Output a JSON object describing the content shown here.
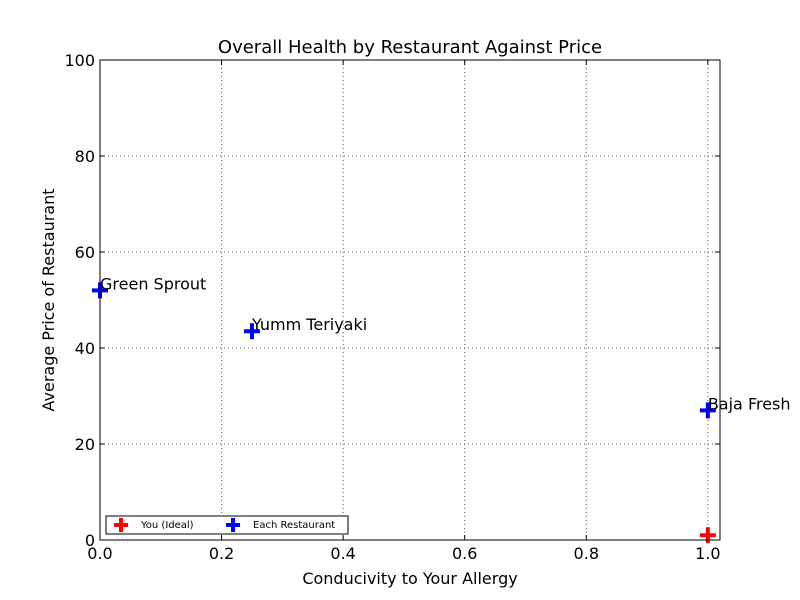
{
  "chart_data": {
    "type": "scatter",
    "title": "Overall Health by Restaurant Against Price",
    "xlabel": "Conducivity to Your Allergy",
    "ylabel": "Average Price of Restaurant",
    "xlim": [
      0.0,
      1.02
    ],
    "ylim": [
      0,
      100
    ],
    "xticks": [
      "0.0",
      "0.2",
      "0.4",
      "0.6",
      "0.8",
      "1.0"
    ],
    "xtick_values": [
      0.0,
      0.2,
      0.4,
      0.6,
      0.8,
      1.0
    ],
    "yticks": [
      "0",
      "20",
      "40",
      "60",
      "80",
      "100"
    ],
    "ytick_values": [
      0,
      20,
      40,
      60,
      80,
      100
    ],
    "grid": true,
    "legend_position": "lower-left",
    "series": [
      {
        "name": "You (Ideal)",
        "color": "#ff0000",
        "marker": "plus",
        "points": [
          {
            "x": 1.0,
            "y": 1,
            "label": ""
          }
        ]
      },
      {
        "name": "Each Restaurant",
        "color": "#0000ff",
        "marker": "plus",
        "points": [
          {
            "x": 0.0,
            "y": 52,
            "label": "Green Sprout"
          },
          {
            "x": 0.25,
            "y": 43.5,
            "label": "Yumm Teriyaki"
          },
          {
            "x": 1.0,
            "y": 27,
            "label": "Baja Fresh"
          }
        ]
      }
    ]
  }
}
